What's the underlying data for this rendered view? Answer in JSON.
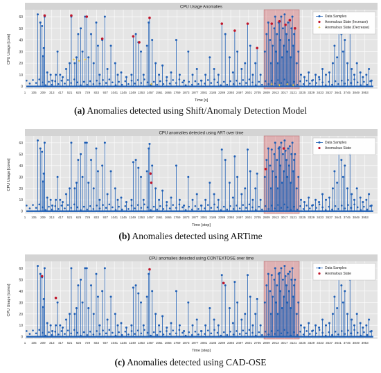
{
  "figure": {
    "captions": [
      {
        "label": "(a)",
        "text": "Anomalies detected using Shift/Anomaly Detection Model"
      },
      {
        "label": "(b)",
        "text": "Anomalies detected using ARTime"
      },
      {
        "label": "(c)",
        "text": "Anomalies detected using CAD-OSE"
      }
    ]
  },
  "colors": {
    "plot_bg": "#e5e5e5",
    "grid": "#ffffff",
    "samples": "#1f5fb5",
    "anomaly_increase": "#c0152a",
    "anomaly_decrease": "#e8c23a",
    "highlight": "#d9868a"
  },
  "chart_data": [
    {
      "type": "line",
      "title": "CPU Usage Anomalies",
      "xlabel": "Time [s]",
      "ylabel": "CPU Usage [core]",
      "xlim": [
        1,
        4100
      ],
      "ylim": [
        -2,
        66
      ],
      "yticks": [
        0,
        10,
        20,
        30,
        40,
        50,
        60
      ],
      "xticks": [
        1,
        105,
        209,
        313,
        417,
        521,
        625,
        729,
        833,
        937,
        1041,
        1145,
        1249,
        1353,
        1457,
        1561,
        1665,
        1769,
        1873,
        1977,
        2081,
        2185,
        2289,
        2393,
        2497,
        2601,
        2705,
        2809,
        2913,
        3017,
        3121,
        3225,
        3329,
        3433,
        3537,
        3641,
        3745,
        3849,
        3953
      ],
      "grid": true,
      "legend_position": "top-right",
      "highlight_region": [
        2780,
        3190
      ],
      "series": [
        {
          "name": "Data Samples"
        },
        {
          "name": "Anomalous State (Increase)"
        },
        {
          "name": "Anomalous State (Decrease)"
        }
      ],
      "anomalies_increase": [
        [
          230,
          61
        ],
        [
          540,
          61
        ],
        [
          720,
          60
        ],
        [
          900,
          41
        ],
        [
          1260,
          43
        ],
        [
          1330,
          38
        ],
        [
          1450,
          59
        ],
        [
          2290,
          54
        ],
        [
          2440,
          48
        ],
        [
          2590,
          54
        ],
        [
          2700,
          33
        ],
        [
          2870,
          54
        ],
        [
          2960,
          56
        ],
        [
          3030,
          53
        ],
        [
          3080,
          57
        ],
        [
          3140,
          50
        ]
      ],
      "anomalies_decrease": [
        [
          570,
          23
        ],
        [
          630,
          22
        ],
        [
          700,
          23
        ],
        [
          1470,
          2
        ],
        [
          2870,
          2
        ],
        [
          2960,
          1
        ],
        [
          3050,
          2
        ],
        [
          3120,
          1
        ]
      ]
    },
    {
      "type": "line",
      "title": "CPU anomalies detected using ART over time",
      "xlabel": "Time [step]",
      "ylabel": "CPU Usage [cores]",
      "xlim": [
        1,
        4100
      ],
      "ylim": [
        -2,
        66
      ],
      "yticks": [
        0,
        10,
        20,
        30,
        40,
        50,
        60
      ],
      "xticks": [
        1,
        105,
        209,
        313,
        417,
        521,
        625,
        729,
        833,
        937,
        1041,
        1145,
        1249,
        1353,
        1457,
        1561,
        1665,
        1769,
        1873,
        1977,
        2081,
        2185,
        2289,
        2393,
        2497,
        2601,
        2705,
        2809,
        2913,
        3017,
        3121,
        3225,
        3329,
        3433,
        3537,
        3641,
        3745,
        3849,
        3953
      ],
      "grid": true,
      "legend_position": "top-right",
      "highlight_region": [
        2780,
        3190
      ],
      "series": [
        {
          "name": "Data Samples"
        },
        {
          "name": "Anomalous State"
        }
      ],
      "anomalies_increase": [
        [
          1460,
          33
        ],
        [
          1470,
          25
        ],
        [
          2800,
          37
        ],
        [
          3010,
          55
        ]
      ],
      "anomalies_decrease": []
    },
    {
      "type": "line",
      "title": "CPU anomalies detected using CONTEXTOSE over time",
      "xlabel": "Time [step]",
      "ylabel": "CPU Usage [cores]",
      "xlim": [
        1,
        4100
      ],
      "ylim": [
        -2,
        66
      ],
      "yticks": [
        0,
        10,
        20,
        30,
        40,
        50,
        60
      ],
      "xticks": [
        1,
        105,
        209,
        313,
        417,
        521,
        625,
        729,
        833,
        937,
        1041,
        1145,
        1249,
        1353,
        1457,
        1561,
        1665,
        1769,
        1873,
        1977,
        2081,
        2185,
        2289,
        2393,
        2497,
        2601,
        2705,
        2809,
        2913,
        3017,
        3121,
        3225,
        3329,
        3433,
        3537,
        3641,
        3745,
        3849,
        3953
      ],
      "grid": true,
      "legend_position": "top-right",
      "highlight_region": [
        2780,
        3190
      ],
      "series": [
        {
          "name": "Data Samples"
        },
        {
          "name": "Anomalous State"
        }
      ],
      "anomalies_increase": [
        [
          200,
          53
        ],
        [
          360,
          34
        ],
        [
          1450,
          59
        ],
        [
          2310,
          47
        ]
      ],
      "anomalies_decrease": []
    }
  ],
  "samples_peaks": [
    [
      150,
      62
    ],
    [
      180,
      55
    ],
    [
      200,
      52
    ],
    [
      210,
      26
    ],
    [
      220,
      33
    ],
    [
      230,
      60
    ],
    [
      260,
      12
    ],
    [
      300,
      10
    ],
    [
      320,
      5
    ],
    [
      360,
      10
    ],
    [
      380,
      30
    ],
    [
      410,
      10
    ],
    [
      440,
      8
    ],
    [
      480,
      15
    ],
    [
      520,
      20
    ],
    [
      540,
      60
    ],
    [
      580,
      20
    ],
    [
      600,
      25
    ],
    [
      620,
      45
    ],
    [
      650,
      50
    ],
    [
      670,
      30
    ],
    [
      700,
      60
    ],
    [
      720,
      60
    ],
    [
      740,
      25
    ],
    [
      770,
      45
    ],
    [
      800,
      20
    ],
    [
      830,
      55
    ],
    [
      850,
      35
    ],
    [
      870,
      10
    ],
    [
      900,
      40
    ],
    [
      930,
      60
    ],
    [
      960,
      15
    ],
    [
      1000,
      35
    ],
    [
      1050,
      20
    ],
    [
      1080,
      10
    ],
    [
      1120,
      12
    ],
    [
      1180,
      8
    ],
    [
      1240,
      10
    ],
    [
      1260,
      43
    ],
    [
      1290,
      45
    ],
    [
      1320,
      38
    ],
    [
      1350,
      30
    ],
    [
      1380,
      10
    ],
    [
      1420,
      35
    ],
    [
      1440,
      55
    ],
    [
      1450,
      59
    ],
    [
      1480,
      40
    ],
    [
      1520,
      20
    ],
    [
      1560,
      10
    ],
    [
      1600,
      18
    ],
    [
      1650,
      8
    ],
    [
      1700,
      12
    ],
    [
      1760,
      40
    ],
    [
      1800,
      10
    ],
    [
      1850,
      5
    ],
    [
      1900,
      30
    ],
    [
      1950,
      10
    ],
    [
      2000,
      15
    ],
    [
      2050,
      5
    ],
    [
      2100,
      10
    ],
    [
      2150,
      25
    ],
    [
      2200,
      15
    ],
    [
      2250,
      10
    ],
    [
      2290,
      54
    ],
    [
      2330,
      45
    ],
    [
      2380,
      25
    ],
    [
      2420,
      12
    ],
    [
      2440,
      48
    ],
    [
      2470,
      30
    ],
    [
      2520,
      15
    ],
    [
      2560,
      20
    ],
    [
      2590,
      54
    ],
    [
      2620,
      35
    ],
    [
      2650,
      10
    ],
    [
      2680,
      20
    ],
    [
      2700,
      33
    ],
    [
      2740,
      10
    ],
    [
      2790,
      30
    ],
    [
      2810,
      45
    ],
    [
      2830,
      55
    ],
    [
      2850,
      40
    ],
    [
      2860,
      20
    ],
    [
      2870,
      54
    ],
    [
      2880,
      35
    ],
    [
      2900,
      50
    ],
    [
      2910,
      60
    ],
    [
      2920,
      30
    ],
    [
      2930,
      45
    ],
    [
      2940,
      20
    ],
    [
      2950,
      55
    ],
    [
      2960,
      56
    ],
    [
      2970,
      40
    ],
    [
      2980,
      60
    ],
    [
      2990,
      25
    ],
    [
      3000,
      50
    ],
    [
      3010,
      35
    ],
    [
      3020,
      62
    ],
    [
      3030,
      53
    ],
    [
      3040,
      45
    ],
    [
      3050,
      30
    ],
    [
      3060,
      55
    ],
    [
      3070,
      40
    ],
    [
      3080,
      57
    ],
    [
      3090,
      25
    ],
    [
      3100,
      50
    ],
    [
      3110,
      60
    ],
    [
      3120,
      35
    ],
    [
      3130,
      45
    ],
    [
      3140,
      50
    ],
    [
      3160,
      20
    ],
    [
      3180,
      30
    ],
    [
      3210,
      10
    ],
    [
      3250,
      8
    ],
    [
      3300,
      12
    ],
    [
      3340,
      5
    ],
    [
      3380,
      10
    ],
    [
      3420,
      8
    ],
    [
      3460,
      15
    ],
    [
      3500,
      10
    ],
    [
      3540,
      12
    ],
    [
      3580,
      20
    ],
    [
      3600,
      35
    ],
    [
      3630,
      25
    ],
    [
      3650,
      55
    ],
    [
      3680,
      45
    ],
    [
      3700,
      30
    ],
    [
      3720,
      40
    ],
    [
      3750,
      20
    ],
    [
      3780,
      50
    ],
    [
      3800,
      15
    ],
    [
      3830,
      10
    ],
    [
      3860,
      20
    ],
    [
      3900,
      12
    ],
    [
      3930,
      8
    ],
    [
      3970,
      10
    ],
    [
      4000,
      15
    ],
    [
      4030,
      5
    ]
  ]
}
